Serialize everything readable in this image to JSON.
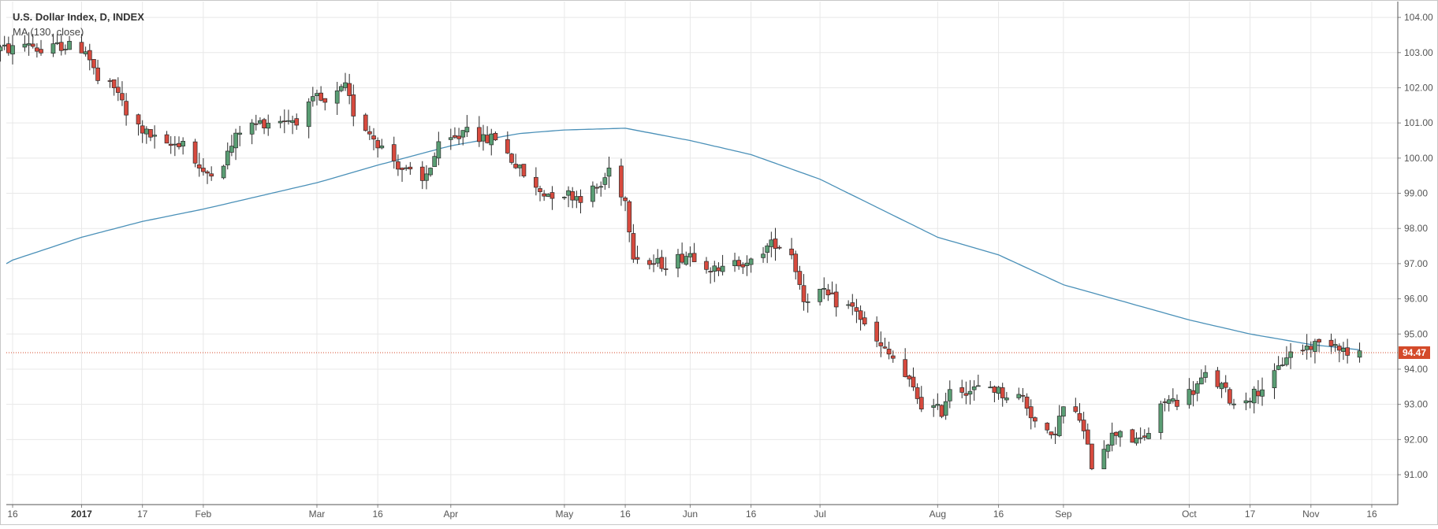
{
  "chart_data": {
    "type": "candlestick",
    "title": "U.S. Dollar Index, D, INDEX",
    "indicator": "MA (130, close)",
    "y_ticks": [
      "91.00",
      "92.00",
      "93.00",
      "94.00",
      "95.00",
      "96.00",
      "97.00",
      "98.00",
      "99.00",
      "100.00",
      "101.00",
      "102.00",
      "103.00",
      "104.00"
    ],
    "ylim": [
      90.15,
      104.45
    ],
    "last_price": 94.47,
    "last_price_label": "94.47",
    "x_ticks": [
      {
        "label": "16",
        "date": "2016-12-16"
      },
      {
        "label": "2017",
        "date": "2017-01-02",
        "bold": true
      },
      {
        "label": "17",
        "date": "2017-01-17"
      },
      {
        "label": "Feb",
        "date": "2017-02-01"
      },
      {
        "label": "Mar",
        "date": "2017-03-01"
      },
      {
        "label": "16",
        "date": "2017-03-16"
      },
      {
        "label": "Apr",
        "date": "2017-04-03"
      },
      {
        "label": "May",
        "date": "2017-05-01"
      },
      {
        "label": "16",
        "date": "2017-05-16"
      },
      {
        "label": "Jun",
        "date": "2017-06-01"
      },
      {
        "label": "16",
        "date": "2017-06-16"
      },
      {
        "label": "Jul",
        "date": "2017-07-03"
      },
      {
        "label": "Aug",
        "date": "2017-08-01"
      },
      {
        "label": "16",
        "date": "2017-08-16"
      },
      {
        "label": "Sep",
        "date": "2017-09-01"
      },
      {
        "label": "Oct",
        "date": "2017-10-02"
      },
      {
        "label": "17",
        "date": "2017-10-17"
      },
      {
        "label": "Nov",
        "date": "2017-11-01"
      },
      {
        "label": "16",
        "date": "2017-11-16"
      }
    ],
    "close_anchors": [
      [
        "2016-12-16",
        103.1
      ],
      [
        "2016-12-20",
        103.3
      ],
      [
        "2016-12-23",
        103.0
      ],
      [
        "2016-12-28",
        103.2
      ],
      [
        "2017-01-03",
        103.1
      ],
      [
        "2017-01-06",
        102.2
      ],
      [
        "2017-01-11",
        101.9
      ],
      [
        "2017-01-13",
        101.2
      ],
      [
        "2017-01-18",
        100.7
      ],
      [
        "2017-01-23",
        100.3
      ],
      [
        "2017-01-27",
        100.5
      ],
      [
        "2017-02-01",
        99.5
      ],
      [
        "2017-02-06",
        99.9
      ],
      [
        "2017-02-10",
        100.8
      ],
      [
        "2017-02-15",
        101.0
      ],
      [
        "2017-02-20",
        101.1
      ],
      [
        "2017-02-24",
        101.1
      ],
      [
        "2017-03-01",
        101.7
      ],
      [
        "2017-03-03",
        101.5
      ],
      [
        "2017-03-08",
        102.0
      ],
      [
        "2017-03-10",
        101.3
      ],
      [
        "2017-03-15",
        100.6
      ],
      [
        "2017-03-17",
        100.3
      ],
      [
        "2017-03-22",
        99.7
      ],
      [
        "2017-03-27",
        99.3
      ],
      [
        "2017-03-31",
        100.3
      ],
      [
        "2017-04-05",
        100.6
      ],
      [
        "2017-04-07",
        101.0
      ],
      [
        "2017-04-11",
        100.5
      ],
      [
        "2017-04-14",
        100.6
      ],
      [
        "2017-04-19",
        99.8
      ],
      [
        "2017-04-24",
        99.1
      ],
      [
        "2017-04-26",
        99.0
      ],
      [
        "2017-05-01",
        99.0
      ],
      [
        "2017-05-05",
        98.9
      ],
      [
        "2017-05-10",
        99.2
      ],
      [
        "2017-05-12",
        99.7
      ],
      [
        "2017-05-16",
        98.8
      ],
      [
        "2017-05-18",
        97.3
      ],
      [
        "2017-05-22",
        97.0
      ],
      [
        "2017-05-26",
        97.0
      ],
      [
        "2017-06-01",
        97.3
      ],
      [
        "2017-06-05",
        97.0
      ],
      [
        "2017-06-08",
        96.7
      ],
      [
        "2017-06-12",
        97.2
      ],
      [
        "2017-06-15",
        96.9
      ],
      [
        "2017-06-19",
        97.4
      ],
      [
        "2017-06-22",
        97.6
      ],
      [
        "2017-06-26",
        97.3
      ],
      [
        "2017-06-29",
        96.0
      ],
      [
        "2017-07-03",
        96.2
      ],
      [
        "2017-07-07",
        95.9
      ],
      [
        "2017-07-12",
        95.7
      ],
      [
        "2017-07-14",
        95.2
      ],
      [
        "2017-07-18",
        94.6
      ],
      [
        "2017-07-21",
        94.3
      ],
      [
        "2017-07-25",
        93.6
      ],
      [
        "2017-07-28",
        93.0
      ],
      [
        "2017-08-02",
        92.8
      ],
      [
        "2017-08-04",
        93.5
      ],
      [
        "2017-08-09",
        93.4
      ],
      [
        "2017-08-14",
        93.5
      ],
      [
        "2017-08-17",
        93.3
      ],
      [
        "2017-08-22",
        93.2
      ],
      [
        "2017-08-25",
        92.5
      ],
      [
        "2017-08-29",
        92.0
      ],
      [
        "2017-09-01",
        92.9
      ],
      [
        "2017-09-05",
        92.6
      ],
      [
        "2017-09-08",
        91.3
      ],
      [
        "2017-09-12",
        92.0
      ],
      [
        "2017-09-15",
        92.3
      ],
      [
        "2017-09-19",
        91.9
      ],
      [
        "2017-09-22",
        92.2
      ],
      [
        "2017-09-26",
        93.1
      ],
      [
        "2017-09-29",
        93.1
      ],
      [
        "2017-10-03",
        93.4
      ],
      [
        "2017-10-06",
        93.8
      ],
      [
        "2017-10-10",
        93.5
      ],
      [
        "2017-10-13",
        93.0
      ],
      [
        "2017-10-18",
        93.3
      ],
      [
        "2017-10-23",
        93.8
      ],
      [
        "2017-10-26",
        94.4
      ],
      [
        "2017-10-30",
        94.6
      ],
      [
        "2017-11-02",
        94.7
      ],
      [
        "2017-11-06",
        94.8
      ],
      [
        "2017-11-08",
        94.7
      ],
      [
        "2017-11-10",
        94.4
      ],
      [
        "2017-11-13",
        94.47
      ]
    ],
    "ma_anchors": [
      [
        "2016-12-16",
        97.1
      ],
      [
        "2017-01-02",
        97.75
      ],
      [
        "2017-01-17",
        98.2
      ],
      [
        "2017-02-01",
        98.55
      ],
      [
        "2017-03-01",
        99.3
      ],
      [
        "2017-03-16",
        99.8
      ],
      [
        "2017-04-03",
        100.35
      ],
      [
        "2017-04-20",
        100.7
      ],
      [
        "2017-05-01",
        100.8
      ],
      [
        "2017-05-16",
        100.85
      ],
      [
        "2017-06-01",
        100.5
      ],
      [
        "2017-06-16",
        100.1
      ],
      [
        "2017-07-03",
        99.4
      ],
      [
        "2017-08-01",
        97.75
      ],
      [
        "2017-08-16",
        97.25
      ],
      [
        "2017-09-01",
        96.4
      ],
      [
        "2017-10-02",
        95.4
      ],
      [
        "2017-10-17",
        95.0
      ],
      [
        "2017-11-01",
        94.7
      ],
      [
        "2017-11-13",
        94.55
      ]
    ],
    "colors": {
      "up_body": "#5a9e74",
      "down_body": "#d74a3e",
      "outline": "#2a2a2a",
      "ma_line": "#4a90b8",
      "price_line": "#d44a2a",
      "grid": "#e8e8e8",
      "axis_text": "#555555"
    },
    "grid": true
  }
}
